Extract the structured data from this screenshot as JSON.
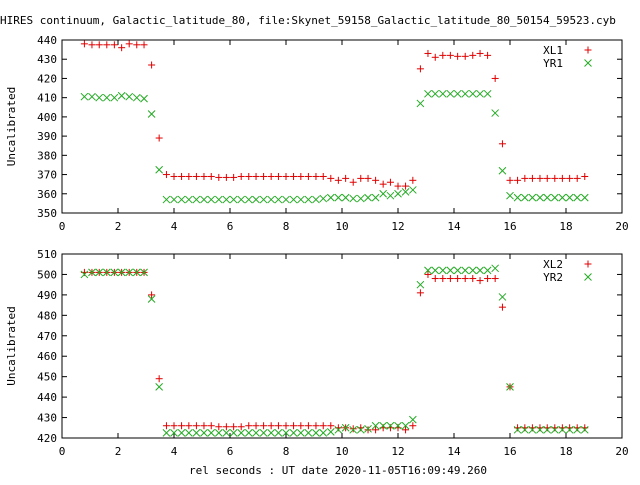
{
  "title": "HIRES continuum, Galactic_latitude_80, file:Skynet_59158_Galactic_latitude_80_50154_59523.cyb",
  "xlabel": "rel seconds : UT date 2020-11-05T16:09:49.260",
  "chart_data": [
    {
      "type": "scatter",
      "ylabel": "Uncalibrated",
      "xlim": [
        0,
        20
      ],
      "ylim": [
        350,
        440
      ],
      "xticks": [
        "0",
        "2",
        "4",
        "6",
        "8",
        "10",
        "12",
        "14",
        "16",
        "18",
        "20"
      ],
      "yticks": [
        "350",
        "360",
        "370",
        "380",
        "390",
        "400",
        "410",
        "420",
        "430",
        "440"
      ],
      "legend_position": "top-right",
      "series": [
        {
          "name": "XL1",
          "marker": "plus",
          "color": "#e00000",
          "x": [
            0.8,
            1.07,
            1.33,
            1.6,
            1.87,
            2.13,
            2.4,
            2.67,
            2.93,
            3.2,
            3.47,
            3.73,
            4.0,
            4.27,
            4.53,
            4.8,
            5.07,
            5.33,
            5.6,
            5.87,
            6.13,
            6.4,
            6.67,
            6.93,
            7.2,
            7.47,
            7.73,
            8.0,
            8.27,
            8.53,
            8.8,
            9.07,
            9.33,
            9.6,
            9.87,
            10.13,
            10.4,
            10.67,
            10.93,
            11.2,
            11.47,
            11.73,
            12.0,
            12.27,
            12.53,
            12.8,
            13.07,
            13.33,
            13.6,
            13.87,
            14.13,
            14.4,
            14.67,
            14.93,
            15.2,
            15.47,
            15.73,
            16.0,
            16.27,
            16.53,
            16.8,
            17.07,
            17.33,
            17.6,
            17.87,
            18.13,
            18.4,
            18.67
          ],
          "y": [
            438,
            437.5,
            437.5,
            437.5,
            437.5,
            436,
            438,
            437.5,
            437.5,
            427,
            389,
            370,
            369,
            369,
            369,
            369,
            369,
            369,
            368.5,
            368.5,
            368.5,
            369,
            369,
            369,
            369,
            369,
            369,
            369,
            369,
            369,
            369,
            369,
            369,
            368,
            367,
            368,
            366,
            368,
            368,
            367,
            365,
            366,
            364,
            364,
            367,
            425,
            433,
            431,
            432,
            432,
            431.5,
            431.5,
            432,
            433,
            432,
            420,
            386,
            367,
            367,
            368,
            368,
            368,
            368,
            368,
            368,
            368,
            368,
            369
          ]
        },
        {
          "name": "YR1",
          "marker": "cross",
          "color": "#22aa22",
          "x": [
            0.8,
            1.07,
            1.33,
            1.6,
            1.87,
            2.13,
            2.4,
            2.67,
            2.93,
            3.2,
            3.47,
            3.73,
            4.0,
            4.27,
            4.53,
            4.8,
            5.07,
            5.33,
            5.6,
            5.87,
            6.13,
            6.4,
            6.67,
            6.93,
            7.2,
            7.47,
            7.73,
            8.0,
            8.27,
            8.53,
            8.8,
            9.07,
            9.33,
            9.6,
            9.87,
            10.13,
            10.4,
            10.67,
            10.93,
            11.2,
            11.47,
            11.73,
            12.0,
            12.27,
            12.53,
            12.8,
            13.07,
            13.33,
            13.6,
            13.87,
            14.13,
            14.4,
            14.67,
            14.93,
            15.2,
            15.47,
            15.73,
            16.0,
            16.27,
            16.53,
            16.8,
            17.07,
            17.33,
            17.6,
            17.87,
            18.13,
            18.4,
            18.67
          ],
          "y": [
            410.5,
            410.5,
            410,
            410,
            410,
            411,
            410.5,
            410,
            409.5,
            401.5,
            372.5,
            357,
            357,
            357,
            357,
            357,
            357,
            357,
            357,
            357,
            357,
            357,
            357,
            357,
            357,
            357,
            357,
            357,
            357,
            357,
            357,
            357,
            357.5,
            358,
            358,
            358,
            357.5,
            357.5,
            358,
            358,
            360,
            359,
            360,
            361,
            362,
            407,
            412,
            412,
            412,
            412,
            412,
            412,
            412,
            412,
            412,
            402,
            372,
            359,
            358,
            358,
            358,
            358,
            358,
            358,
            358,
            358,
            358,
            358
          ]
        }
      ]
    },
    {
      "type": "scatter",
      "ylabel": "Uncalibrated",
      "xlim": [
        0,
        20
      ],
      "ylim": [
        420,
        510
      ],
      "xticks": [
        "0",
        "2",
        "4",
        "6",
        "8",
        "10",
        "12",
        "14",
        "16",
        "18",
        "20"
      ],
      "yticks": [
        "420",
        "430",
        "440",
        "450",
        "460",
        "470",
        "480",
        "490",
        "500",
        "510"
      ],
      "legend_position": "top-right",
      "series": [
        {
          "name": "XL2",
          "marker": "plus",
          "color": "#e00000",
          "x": [
            0.8,
            1.07,
            1.33,
            1.6,
            1.87,
            2.13,
            2.4,
            2.67,
            2.93,
            3.2,
            3.47,
            3.73,
            4.0,
            4.27,
            4.53,
            4.8,
            5.07,
            5.33,
            5.6,
            5.87,
            6.13,
            6.4,
            6.67,
            6.93,
            7.2,
            7.47,
            7.73,
            8.0,
            8.27,
            8.53,
            8.8,
            9.07,
            9.33,
            9.6,
            9.87,
            10.13,
            10.4,
            10.67,
            10.93,
            11.2,
            11.47,
            11.73,
            12.0,
            12.27,
            12.53,
            12.8,
            13.07,
            13.33,
            13.6,
            13.87,
            14.13,
            14.4,
            14.67,
            14.93,
            15.2,
            15.47,
            15.73,
            16.0,
            16.27,
            16.53,
            16.8,
            17.07,
            17.33,
            17.6,
            17.87,
            18.13,
            18.4,
            18.67
          ],
          "y": [
            501,
            501,
            501,
            501,
            501,
            501,
            501,
            501,
            501,
            490,
            449,
            426,
            426,
            426,
            426,
            426,
            426,
            426,
            425.5,
            425.5,
            425.5,
            425.5,
            426,
            426,
            426,
            426,
            426,
            426,
            426,
            426,
            426,
            426,
            426,
            426,
            425,
            425,
            424.5,
            425,
            424,
            424,
            425,
            425,
            425,
            424,
            426,
            491,
            500,
            498,
            498,
            498,
            498,
            498,
            498,
            497,
            498,
            498,
            484,
            445,
            425,
            425,
            425,
            425,
            425,
            425,
            425,
            425,
            425,
            425
          ]
        },
        {
          "name": "YR2",
          "marker": "cross",
          "color": "#22aa22",
          "x": [
            0.8,
            1.07,
            1.33,
            1.6,
            1.87,
            2.13,
            2.4,
            2.67,
            2.93,
            3.2,
            3.47,
            3.73,
            4.0,
            4.27,
            4.53,
            4.8,
            5.07,
            5.33,
            5.6,
            5.87,
            6.13,
            6.4,
            6.67,
            6.93,
            7.2,
            7.47,
            7.73,
            8.0,
            8.27,
            8.53,
            8.8,
            9.07,
            9.33,
            9.6,
            9.87,
            10.13,
            10.4,
            10.67,
            10.93,
            11.2,
            11.47,
            11.73,
            12.0,
            12.27,
            12.53,
            12.8,
            13.07,
            13.33,
            13.6,
            13.87,
            14.13,
            14.4,
            14.67,
            14.93,
            15.2,
            15.47,
            15.73,
            16.0,
            16.27,
            16.53,
            16.8,
            17.07,
            17.33,
            17.6,
            17.87,
            18.13,
            18.4,
            18.67
          ],
          "y": [
            500,
            501,
            501,
            501,
            501,
            501,
            501,
            501,
            501,
            488,
            445,
            422.5,
            422.5,
            422.5,
            422.5,
            422.5,
            422.5,
            422.5,
            422.5,
            422.5,
            422.5,
            422.5,
            422.5,
            422.5,
            422.5,
            422.5,
            422.5,
            422.5,
            422.5,
            422.5,
            422.5,
            422.5,
            422.5,
            423,
            424,
            425,
            424,
            424,
            424.5,
            426,
            426,
            426,
            426,
            426,
            429,
            495,
            502,
            502,
            502,
            502,
            502,
            502,
            502,
            502,
            502,
            503,
            489,
            445,
            424,
            424,
            424,
            424,
            424,
            424,
            424,
            424,
            424,
            424
          ]
        }
      ]
    }
  ]
}
